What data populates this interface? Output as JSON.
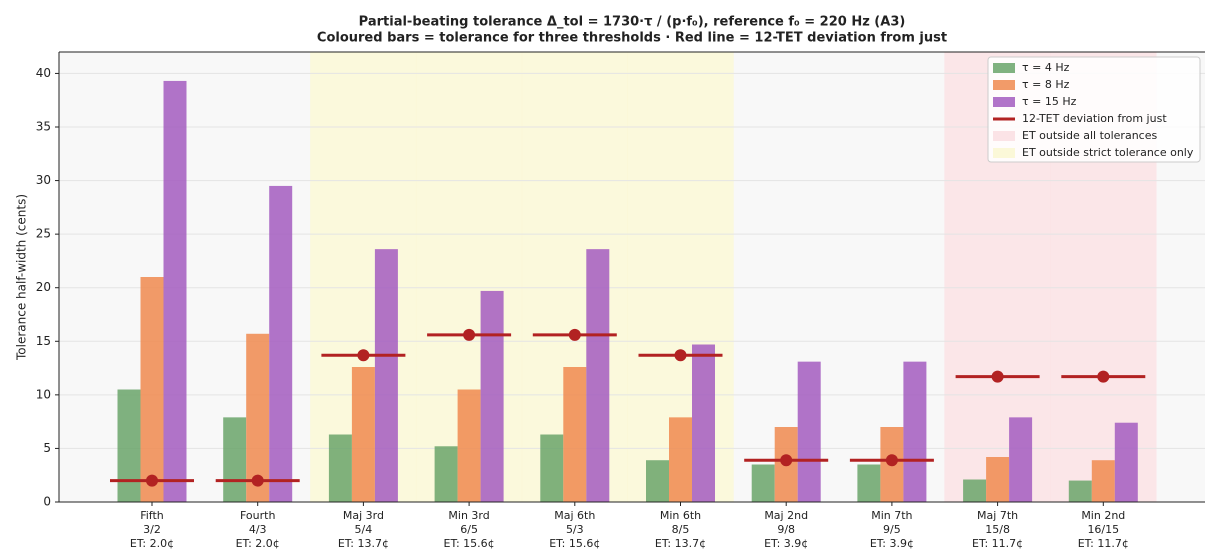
{
  "chart_data": {
    "type": "bar",
    "title": [
      "Partial-beating tolerance  Δ_tol = 1730·τ / (p·f₀),  reference f₀ = 220 Hz (A3)",
      "Coloured bars = tolerance for three thresholds   ·   Red line = 12-TET deviation from just"
    ],
    "y_label": "Tolerance half-width  (cents)",
    "categories": [
      [
        "Fifth",
        "3/2",
        "ET: 2.0¢"
      ],
      [
        "Fourth",
        "4/3",
        "ET: 2.0¢"
      ],
      [
        "Maj 3rd",
        "5/4",
        "ET: 13.7¢"
      ],
      [
        "Min 3rd",
        "6/5",
        "ET: 15.6¢"
      ],
      [
        "Maj 6th",
        "5/3",
        "ET: 15.6¢"
      ],
      [
        "Min 6th",
        "8/5",
        "ET: 13.7¢"
      ],
      [
        "Maj 2nd",
        "9/8",
        "ET: 3.9¢"
      ],
      [
        "Min 7th",
        "9/5",
        "ET: 3.9¢"
      ],
      [
        "Maj 7th",
        "15/8",
        "ET: 11.7¢"
      ],
      [
        "Min 2nd",
        "16/15",
        "ET: 11.7¢"
      ]
    ],
    "series": [
      {
        "name": "τ = 4 Hz",
        "color": "#6aa56a",
        "values": [
          10.5,
          7.9,
          6.3,
          5.2,
          6.3,
          3.9,
          3.5,
          3.5,
          2.1,
          2.0
        ]
      },
      {
        "name": "τ = 8 Hz",
        "color": "#f0894f",
        "values": [
          21.0,
          15.7,
          12.6,
          10.5,
          12.6,
          7.9,
          7.0,
          7.0,
          4.2,
          3.9
        ]
      },
      {
        "name": "τ = 15 Hz",
        "color": "#a35cc0",
        "values": [
          39.3,
          29.5,
          23.6,
          19.7,
          23.6,
          14.7,
          13.1,
          13.1,
          7.9,
          7.4
        ]
      }
    ],
    "line_series": {
      "name": "12-TET deviation from just",
      "color": "#b22222",
      "values": [
        2.0,
        2.0,
        13.7,
        15.6,
        15.6,
        13.7,
        3.9,
        3.9,
        11.7,
        11.7
      ]
    },
    "regions": [
      {
        "name": "ET outside all tolerances",
        "color": "#fbe3e6",
        "indices": [
          8,
          9
        ]
      },
      {
        "name": "ET outside strict tolerance only",
        "color": "#fbf8d8",
        "indices": [
          2,
          3,
          4,
          5
        ]
      }
    ],
    "ylim": [
      0,
      42
    ],
    "yticks": [
      0,
      5,
      10,
      15,
      20,
      25,
      30,
      35,
      40
    ],
    "grid": true,
    "legend": "upper right"
  }
}
